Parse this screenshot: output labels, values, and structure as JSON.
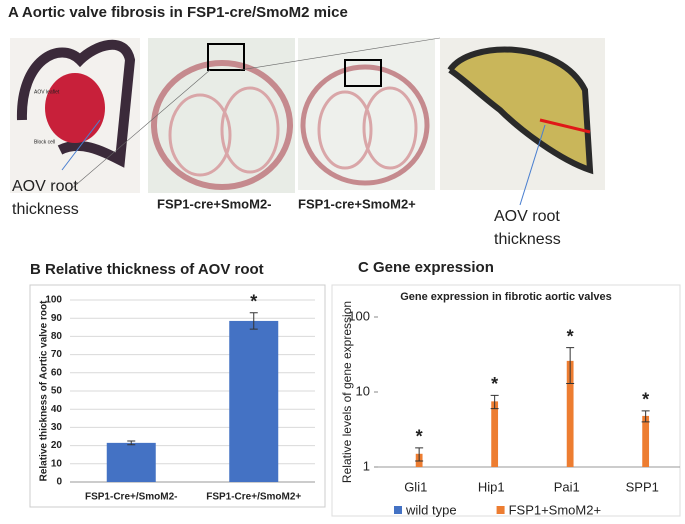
{
  "panel_a": {
    "title": "A Aortic valve fibrosis in FSP1-cre/SmoM2 mice",
    "image_labels": [
      "AOV leaflet",
      "Block cell"
    ],
    "left_label": [
      "AOV root",
      "thickness"
    ],
    "captions": [
      "FSP1-cre+SmoM2-",
      "FSP1-cre+SmoM2+"
    ],
    "right_label": [
      "AOV root",
      "thickness"
    ]
  },
  "chart_data": [
    {
      "type": "bar",
      "title": "B Relative thickness of AOV root",
      "y_label": "Relative thickness of Aortic valve root",
      "categories": [
        "FSP1-Cre+/SmoM2-",
        "FSP1-Cre+/SmoM2+"
      ],
      "values": [
        21.5,
        88.5
      ],
      "errors": [
        1,
        4.5
      ],
      "markers": [
        null,
        "*"
      ],
      "color": "#4472c4",
      "ylim": [
        0,
        100
      ],
      "yticks": [
        0,
        10,
        20,
        30,
        40,
        50,
        60,
        70,
        80,
        90,
        100
      ],
      "grid": true
    },
    {
      "type": "bar",
      "panel_title": "C Gene expression",
      "title": "Gene expression in fibrotic aortic valves",
      "y_label": "Relative levels of gene expression",
      "categories": [
        "Gli1",
        "Hip1",
        "Pai1",
        "SPP1"
      ],
      "series": [
        {
          "name": "wild type",
          "color": "#4472c4",
          "values": [
            1,
            1,
            1,
            1
          ]
        },
        {
          "name": "FSP1+SmoM2+",
          "color": "#ed7d31",
          "values": [
            1.5,
            7.5,
            26,
            4.8
          ],
          "errors": [
            0.3,
            1.5,
            13,
            0.8
          ],
          "markers": [
            "*",
            "*",
            "*",
            "*"
          ]
        }
      ],
      "log_scale": true,
      "ylim": [
        1,
        100
      ],
      "yticks": [
        1,
        10,
        100
      ],
      "grid": false,
      "legend": "bottom"
    }
  ]
}
